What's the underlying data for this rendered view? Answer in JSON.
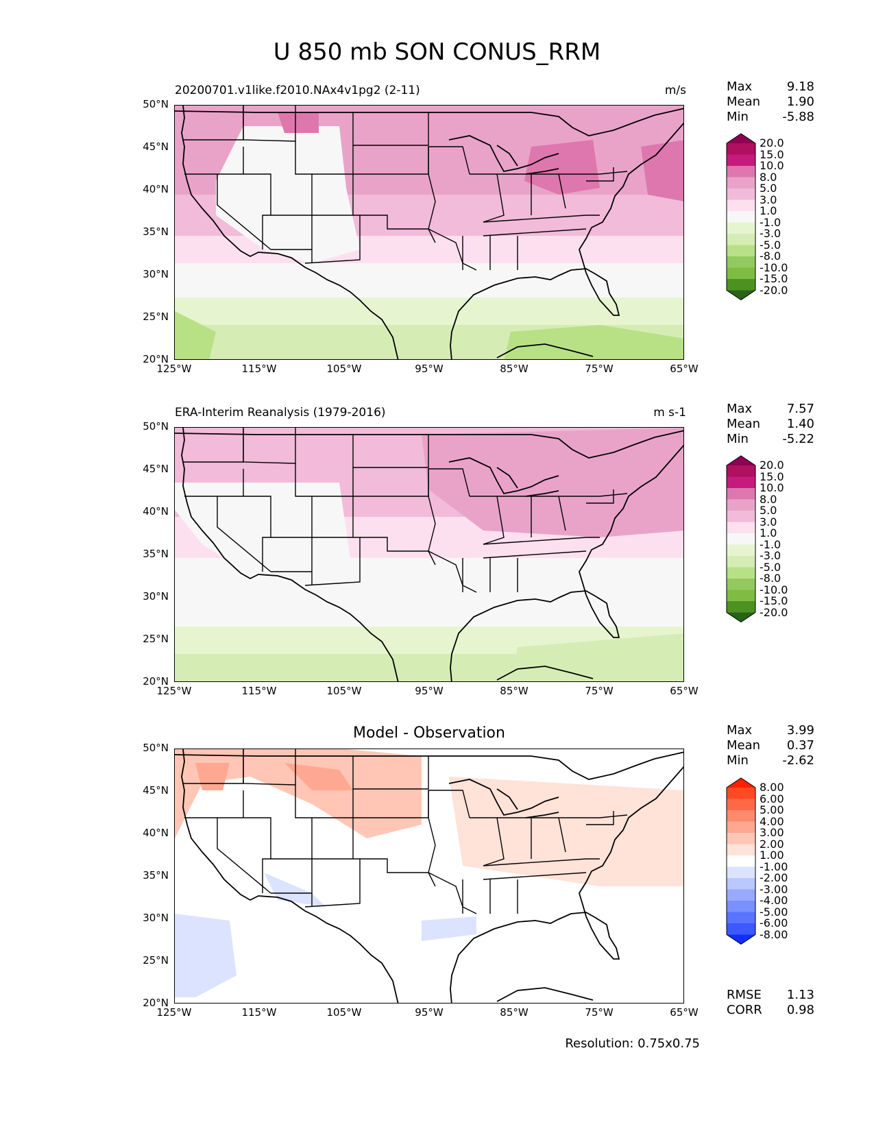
{
  "title": "U 850 mb SON CONUS_RRM",
  "panels": [
    {
      "left_title": "20200701.v1like.f2010.NAx4v1pg2 (2-11)",
      "right_title": "m/s",
      "stats": [
        [
          "Max",
          "9.18"
        ],
        [
          "Mean",
          "1.90"
        ],
        [
          "Min",
          "-5.88"
        ]
      ],
      "colorbar": "main"
    },
    {
      "left_title": "ERA-Interim Reanalysis (1979-2016)",
      "right_title": "m s-1",
      "stats": [
        [
          "Max",
          "7.57"
        ],
        [
          "Mean",
          "1.40"
        ],
        [
          "Min",
          "-5.22"
        ]
      ],
      "colorbar": "main"
    },
    {
      "center_title": "Model - Observation",
      "stats": [
        [
          "Max",
          "3.99"
        ],
        [
          "Mean",
          "0.37"
        ],
        [
          "Min",
          "-2.62"
        ]
      ],
      "extra_stats": [
        [
          "RMSE",
          "1.13"
        ],
        [
          "CORR",
          "0.98"
        ]
      ],
      "colorbar": "diff"
    }
  ],
  "y_ticks": [
    "50°N",
    "45°N",
    "40°N",
    "35°N",
    "30°N",
    "25°N",
    "20°N"
  ],
  "x_ticks": [
    "125°W",
    "115°W",
    "105°W",
    "95°W",
    "85°W",
    "75°W",
    "65°W"
  ],
  "colorbars": {
    "main": {
      "levels": [
        "20.0",
        "15.0",
        "10.0",
        "8.0",
        "5.0",
        "3.0",
        "1.0",
        "-1.0",
        "-3.0",
        "-5.0",
        "-8.0",
        "-10.0",
        "-15.0",
        "-20.0"
      ],
      "colors": [
        "#8e0152",
        "#b0105f",
        "#c51b7d",
        "#de77ae",
        "#e9a3c9",
        "#f1bbd9",
        "#fde0ef",
        "#f7f7f7",
        "#e6f5d0",
        "#d5edb5",
        "#b8e186",
        "#93c95f",
        "#7fbc41",
        "#4d9221",
        "#276419"
      ]
    },
    "diff": {
      "levels": [
        "8.00",
        "6.00",
        "5.00",
        "4.00",
        "3.00",
        "2.00",
        "1.00",
        "-1.00",
        "-2.00",
        "-3.00",
        "-4.00",
        "-5.00",
        "-6.00",
        "-8.00"
      ],
      "colors": [
        "#ff2000",
        "#ff4a24",
        "#ff6a46",
        "#ff8a6c",
        "#ffa891",
        "#ffc6b5",
        "#ffe2d8",
        "#ffffff",
        "#dce3ff",
        "#bac8ff",
        "#97aaff",
        "#7a90ff",
        "#5a74ff",
        "#3c58ff",
        "#1030ff"
      ]
    }
  },
  "resolution": "Resolution: 0.75x0.75"
}
